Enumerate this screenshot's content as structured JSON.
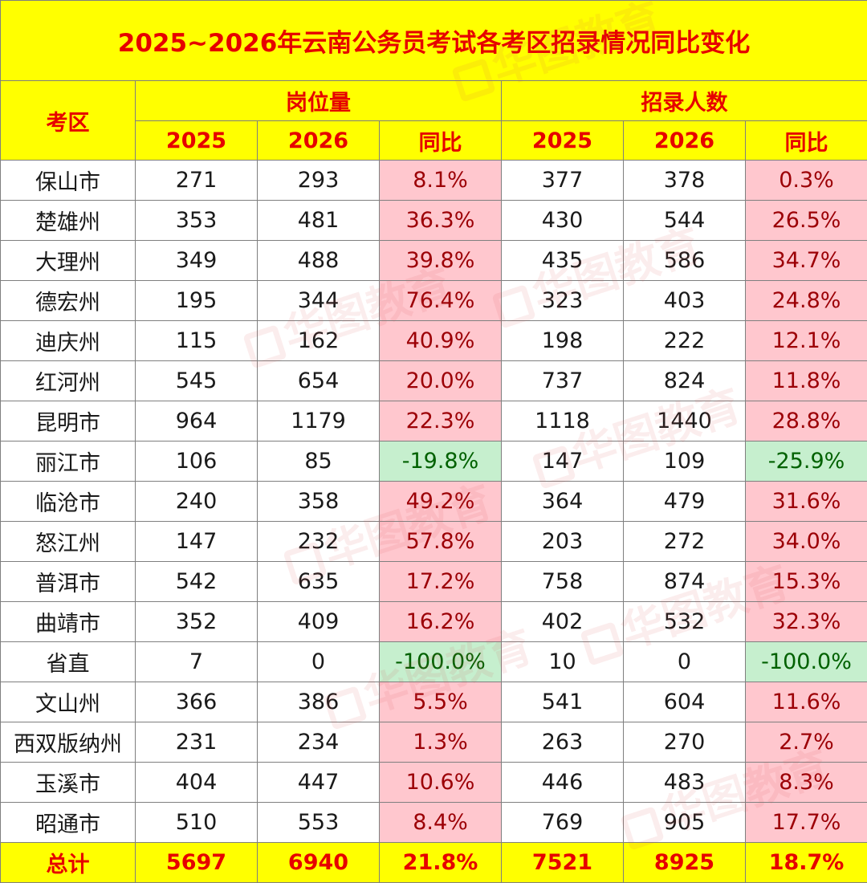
{
  "title": "2025~2026年云南公务员考试各考区招录情况同比变化",
  "headers": {
    "area": "考区",
    "positions_group": "岗位量",
    "recruits_group": "招录人数",
    "y2025": "2025",
    "y2026": "2026",
    "yoy": "同比"
  },
  "rows": [
    {
      "area": "保山市",
      "pos_2025": "271",
      "pos_2026": "293",
      "pos_yoy": "8.1%",
      "rec_2025": "377",
      "rec_2026": "378",
      "rec_yoy": "0.3%"
    },
    {
      "area": "楚雄州",
      "pos_2025": "353",
      "pos_2026": "481",
      "pos_yoy": "36.3%",
      "rec_2025": "430",
      "rec_2026": "544",
      "rec_yoy": "26.5%"
    },
    {
      "area": "大理州",
      "pos_2025": "349",
      "pos_2026": "488",
      "pos_yoy": "39.8%",
      "rec_2025": "435",
      "rec_2026": "586",
      "rec_yoy": "34.7%"
    },
    {
      "area": "德宏州",
      "pos_2025": "195",
      "pos_2026": "344",
      "pos_yoy": "76.4%",
      "rec_2025": "323",
      "rec_2026": "403",
      "rec_yoy": "24.8%"
    },
    {
      "area": "迪庆州",
      "pos_2025": "115",
      "pos_2026": "162",
      "pos_yoy": "40.9%",
      "rec_2025": "198",
      "rec_2026": "222",
      "rec_yoy": "12.1%"
    },
    {
      "area": "红河州",
      "pos_2025": "545",
      "pos_2026": "654",
      "pos_yoy": "20.0%",
      "rec_2025": "737",
      "rec_2026": "824",
      "rec_yoy": "11.8%"
    },
    {
      "area": "昆明市",
      "pos_2025": "964",
      "pos_2026": "1179",
      "pos_yoy": "22.3%",
      "rec_2025": "1118",
      "rec_2026": "1440",
      "rec_yoy": "28.8%"
    },
    {
      "area": "丽江市",
      "pos_2025": "106",
      "pos_2026": "85",
      "pos_yoy": "-19.8%",
      "rec_2025": "147",
      "rec_2026": "109",
      "rec_yoy": "-25.9%"
    },
    {
      "area": "临沧市",
      "pos_2025": "240",
      "pos_2026": "358",
      "pos_yoy": "49.2%",
      "rec_2025": "364",
      "rec_2026": "479",
      "rec_yoy": "31.6%"
    },
    {
      "area": "怒江州",
      "pos_2025": "147",
      "pos_2026": "232",
      "pos_yoy": "57.8%",
      "rec_2025": "203",
      "rec_2026": "272",
      "rec_yoy": "34.0%"
    },
    {
      "area": "普洱市",
      "pos_2025": "542",
      "pos_2026": "635",
      "pos_yoy": "17.2%",
      "rec_2025": "758",
      "rec_2026": "874",
      "rec_yoy": "15.3%"
    },
    {
      "area": "曲靖市",
      "pos_2025": "352",
      "pos_2026": "409",
      "pos_yoy": "16.2%",
      "rec_2025": "402",
      "rec_2026": "532",
      "rec_yoy": "32.3%"
    },
    {
      "area": "省直",
      "pos_2025": "7",
      "pos_2026": "0",
      "pos_yoy": "-100.0%",
      "rec_2025": "10",
      "rec_2026": "0",
      "rec_yoy": "-100.0%"
    },
    {
      "area": "文山州",
      "pos_2025": "366",
      "pos_2026": "386",
      "pos_yoy": "5.5%",
      "rec_2025": "541",
      "rec_2026": "604",
      "rec_yoy": "11.6%"
    },
    {
      "area": "西双版纳州",
      "pos_2025": "231",
      "pos_2026": "234",
      "pos_yoy": "1.3%",
      "rec_2025": "263",
      "rec_2026": "270",
      "rec_yoy": "2.7%"
    },
    {
      "area": "玉溪市",
      "pos_2025": "404",
      "pos_2026": "447",
      "pos_yoy": "10.6%",
      "rec_2025": "446",
      "rec_2026": "483",
      "rec_yoy": "8.3%"
    },
    {
      "area": "昭通市",
      "pos_2025": "510",
      "pos_2026": "553",
      "pos_yoy": "8.4%",
      "rec_2025": "769",
      "rec_2026": "905",
      "rec_yoy": "17.7%"
    }
  ],
  "total": {
    "area": "总计",
    "pos_2025": "5697",
    "pos_2026": "6940",
    "pos_yoy": "21.8%",
    "rec_2025": "7521",
    "rec_2026": "8925",
    "rec_yoy": "18.7%"
  },
  "watermark_text": "华图教育",
  "colors": {
    "header_bg": "#ffff00",
    "header_text": "#e60000",
    "positive_bg": "#ffc7ce",
    "positive_text": "#9c0006",
    "negative_bg": "#c6efce",
    "negative_text": "#006100"
  }
}
